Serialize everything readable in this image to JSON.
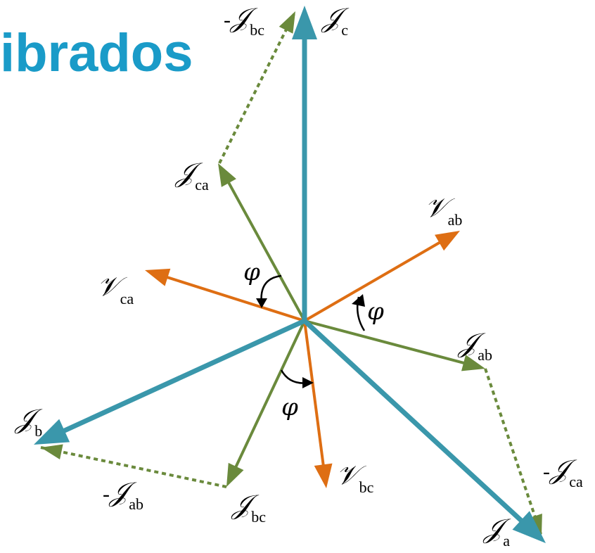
{
  "title": "ibrados",
  "colors": {
    "line_current": "#3a97ab",
    "phase_current": "#6a8a3c",
    "voltage": "#de6e13",
    "title": "#1a9bc8",
    "angle_marker": "#000000"
  },
  "labels": {
    "ic": {
      "sym": "𝒥",
      "sub": "c"
    },
    "ibc_neg_top": {
      "minus": "-",
      "sym": "𝒥",
      "sub": "bc"
    },
    "ica": {
      "sym": "𝒥",
      "sub": "ca"
    },
    "vab": {
      "sym": "𝒱",
      "sub": "ab"
    },
    "vca": {
      "sym": "𝒱",
      "sub": "ca"
    },
    "iab": {
      "sym": "𝒥",
      "sub": "ab"
    },
    "ib": {
      "sym": "𝒥",
      "sub": "b"
    },
    "iab_neg": {
      "minus": "-",
      "sym": "𝒥",
      "sub": "ab"
    },
    "ibc": {
      "sym": "𝒥",
      "sub": "bc"
    },
    "vbc": {
      "sym": "𝒱",
      "sub": "bc"
    },
    "ica_neg": {
      "minus": "-",
      "sym": "𝒥",
      "sub": "ca"
    },
    "ia": {
      "sym": "𝒥",
      "sub": "a"
    }
  },
  "angle_symbol": "φ"
}
